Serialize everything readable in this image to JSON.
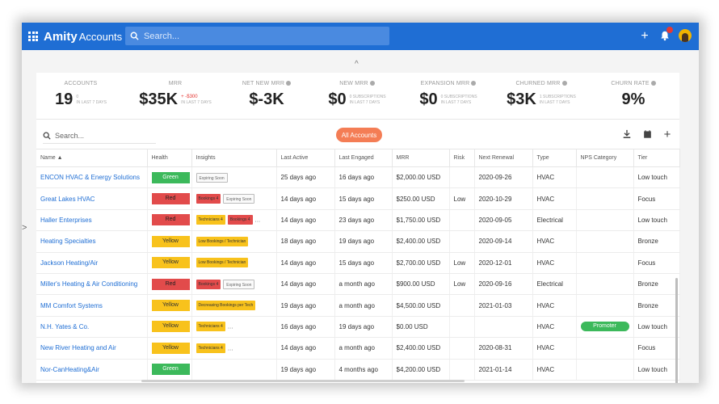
{
  "app": {
    "brand_bold": "Amity",
    "brand_rest": "Accounts"
  },
  "topbar": {
    "search_placeholder": "Search..."
  },
  "icons": {
    "apps": "apps-grid-icon",
    "add": "plus-icon",
    "notifications": "bell-icon",
    "download": "download-icon",
    "calendar": "calendar-icon"
  },
  "colors": {
    "accent": "#1f6ed4",
    "pill": "#f47d55",
    "green": "#3cb95b",
    "red": "#e24b4b",
    "yellow": "#f8c21c"
  },
  "kpis": [
    {
      "title": "ACCOUNTS",
      "value": "19",
      "sub1": "0",
      "sub2": "IN LAST 7 DAYS"
    },
    {
      "title": "MRR",
      "value": "$35K",
      "sub1": "+ -$300",
      "sub2": "IN LAST 7 DAYS"
    },
    {
      "title": "NET NEW MRR",
      "value": "$-3K",
      "sub1": "",
      "sub2": ""
    },
    {
      "title": "NEW MRR",
      "value": "$0",
      "sub1": "0 SUBSCRIPTIONS",
      "sub2": "IN LAST 7 DAYS"
    },
    {
      "title": "EXPANSION MRR",
      "value": "$0",
      "sub1": "0 SUBSCRIPTIONS",
      "sub2": "IN LAST 7 DAYS"
    },
    {
      "title": "CHURNED MRR",
      "value": "$3K",
      "sub1": "1 SUBSCRIPTIONS",
      "sub2": "IN LAST 7 DAYS"
    },
    {
      "title": "CHURN RATE",
      "value": "9%",
      "sub1": "",
      "sub2": ""
    }
  ],
  "toolbar": {
    "search_placeholder": "Search...",
    "filter_label": "All Accounts"
  },
  "columns": [
    "Name ▲",
    "Health",
    "Insights",
    "Last Active",
    "Last Engaged",
    "MRR",
    "Risk",
    "Next Renewal",
    "Type",
    "NPS Category",
    "Tier"
  ],
  "rows": [
    {
      "name": "ENCON HVAC & Energy Solutions",
      "health": "Green",
      "tags": [
        {
          "text": "Expiring Soon",
          "style": "gray"
        }
      ],
      "more": "",
      "last_active": "25 days ago",
      "last_engaged": "16 days ago",
      "mrr": "$2,000.00 USD",
      "risk": "",
      "renewal": "2020-09-26",
      "type": "HVAC",
      "nps": "",
      "tier": "Low touch"
    },
    {
      "name": "Great Lakes HVAC",
      "health": "Red",
      "tags": [
        {
          "text": "Bookings 4",
          "style": "red"
        },
        {
          "text": "Expiring Soon",
          "style": "gray"
        }
      ],
      "more": "",
      "last_active": "14 days ago",
      "last_engaged": "15 days ago",
      "mrr": "$250.00 USD",
      "risk": "Low",
      "renewal": "2020-10-29",
      "type": "HVAC",
      "nps": "",
      "tier": "Focus"
    },
    {
      "name": "Haller Enterprises",
      "health": "Red",
      "tags": [
        {
          "text": "Technicians 4",
          "style": "yellow"
        },
        {
          "text": "Bookings 4",
          "style": "red"
        }
      ],
      "more": "...",
      "last_active": "14 days ago",
      "last_engaged": "23 days ago",
      "mrr": "$1,750.00 USD",
      "risk": "",
      "renewal": "2020-09-05",
      "type": "Electrical",
      "nps": "",
      "tier": "Low touch"
    },
    {
      "name": "Heating Specialties",
      "health": "Yellow",
      "tags": [
        {
          "text": "Low Bookings / Technician",
          "style": "yellow"
        }
      ],
      "more": "",
      "last_active": "18 days ago",
      "last_engaged": "19 days ago",
      "mrr": "$2,400.00 USD",
      "risk": "",
      "renewal": "2020-09-14",
      "type": "HVAC",
      "nps": "",
      "tier": "Bronze"
    },
    {
      "name": "Jackson Heating/Air",
      "health": "Yellow",
      "tags": [
        {
          "text": "Low Bookings / Technician",
          "style": "yellow"
        }
      ],
      "more": "",
      "last_active": "14 days ago",
      "last_engaged": "15 days ago",
      "mrr": "$2,700.00 USD",
      "risk": "Low",
      "renewal": "2020-12-01",
      "type": "HVAC",
      "nps": "",
      "tier": "Focus"
    },
    {
      "name": "Miller's Heating & Air Conditioning",
      "health": "Red",
      "tags": [
        {
          "text": "Bookings 4",
          "style": "red"
        },
        {
          "text": "Expiring Soon",
          "style": "gray"
        }
      ],
      "more": "",
      "last_active": "14 days ago",
      "last_engaged": "a month ago",
      "mrr": "$900.00 USD",
      "risk": "Low",
      "renewal": "2020-09-16",
      "type": "Electrical",
      "nps": "",
      "tier": "Bronze"
    },
    {
      "name": "MM Comfort Systems",
      "health": "Yellow",
      "tags": [
        {
          "text": "Decreasing Bookings per Tech",
          "style": "yellow"
        }
      ],
      "more": "",
      "last_active": "19 days ago",
      "last_engaged": "a month ago",
      "mrr": "$4,500.00 USD",
      "risk": "",
      "renewal": "2021-01-03",
      "type": "HVAC",
      "nps": "",
      "tier": "Bronze"
    },
    {
      "name": "N.H. Yates & Co.",
      "health": "Yellow",
      "tags": [
        {
          "text": "Technicians 4",
          "style": "yellow"
        }
      ],
      "more": "...",
      "last_active": "16 days ago",
      "last_engaged": "19 days ago",
      "mrr": "$0.00 USD",
      "risk": "",
      "renewal": "",
      "type": "HVAC",
      "nps": "Promoter",
      "tier": "Low touch"
    },
    {
      "name": "New River Heating and Air",
      "health": "Yellow",
      "tags": [
        {
          "text": "Technicians 4",
          "style": "yellow"
        }
      ],
      "more": "...",
      "last_active": "14 days ago",
      "last_engaged": "a month ago",
      "mrr": "$2,400.00 USD",
      "risk": "",
      "renewal": "2020-08-31",
      "type": "HVAC",
      "nps": "",
      "tier": "Focus"
    },
    {
      "name": "Nor-CanHeating&Air",
      "health": "Green",
      "tags": [],
      "more": "",
      "last_active": "19 days ago",
      "last_engaged": "4 months ago",
      "mrr": "$4,200.00 USD",
      "risk": "",
      "renewal": "2021-01-14",
      "type": "HVAC",
      "nps": "",
      "tier": "Low touch"
    }
  ]
}
